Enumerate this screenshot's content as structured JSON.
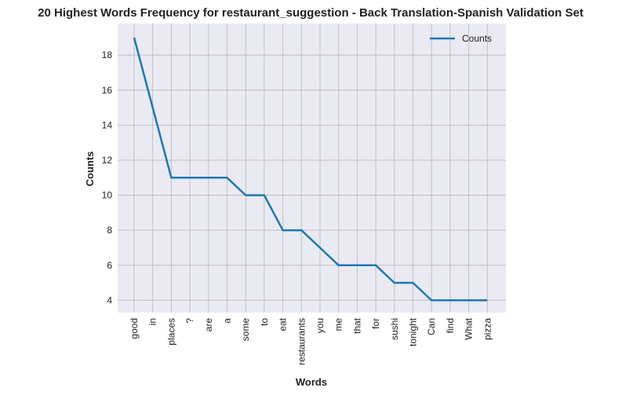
{
  "chart_data": {
    "type": "line",
    "title": "20 Highest Words Frequency for restaurant_suggestion - Back Translation-Spanish Validation Set",
    "xlabel": "Words",
    "ylabel": "Counts",
    "categories": [
      "good",
      "in",
      "places",
      "?",
      "are",
      "a",
      "some",
      "to",
      "eat",
      "restaurants",
      "you",
      "me",
      "that",
      "for",
      "sushi",
      "tonight",
      "Can",
      "find",
      "What",
      "pizza"
    ],
    "series": [
      {
        "name": "Counts",
        "values": [
          19,
          15,
          11,
          11,
          11,
          11,
          10,
          10,
          8,
          8,
          7,
          6,
          6,
          6,
          5,
          5,
          4,
          4,
          4,
          4
        ]
      }
    ],
    "ylim": [
      3.3,
      19.8
    ],
    "yticks": [
      4,
      6,
      8,
      10,
      12,
      14,
      16,
      18
    ],
    "grid": true,
    "legend_position": "top-right",
    "colors": {
      "line": "#1f77b4",
      "plot_background": "#eaeaf2",
      "grid": "#c0c0c0"
    }
  }
}
